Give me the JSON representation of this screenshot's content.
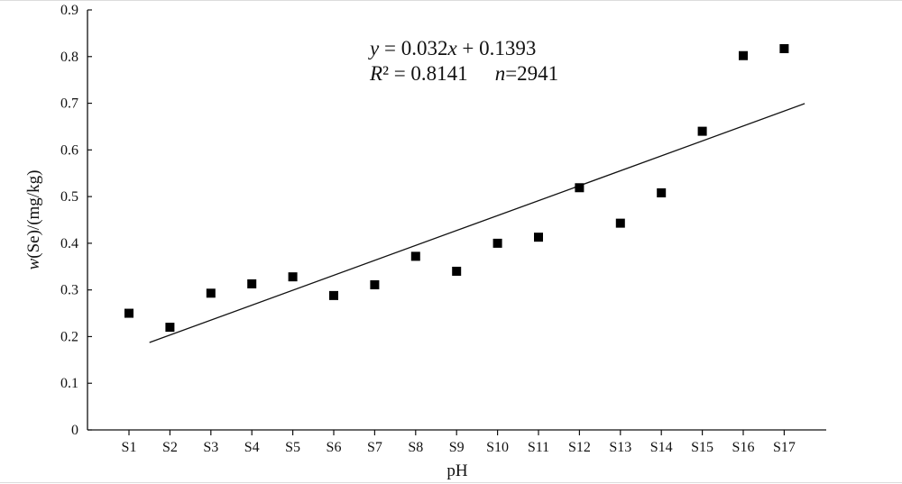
{
  "chart_data": {
    "type": "scatter",
    "xlabel": "pH",
    "ylabel": "w(Se)/(mg/kg)",
    "ylabel_parts": {
      "italic": "w",
      "rest": "(Se)/(mg/kg)"
    },
    "categories": [
      "S1",
      "S2",
      "S3",
      "S4",
      "S5",
      "S6",
      "S7",
      "S8",
      "S9",
      "S10",
      "S11",
      "S12",
      "S13",
      "S14",
      "S15",
      "S16",
      "S17"
    ],
    "values": [
      0.25,
      0.22,
      0.293,
      0.313,
      0.328,
      0.288,
      0.311,
      0.372,
      0.34,
      0.4,
      0.413,
      0.519,
      0.443,
      0.508,
      0.64,
      0.802,
      0.817
    ],
    "ylim": [
      0,
      0.9
    ],
    "yticks": [
      "0",
      "0.1",
      "0.2",
      "0.3",
      "0.4",
      "0.5",
      "0.6",
      "0.7",
      "0.8",
      "0.9"
    ],
    "grid": false,
    "marker": "square",
    "marker_color": "#000000",
    "trendline": {
      "slope": 0.032,
      "intercept": 0.1393,
      "x_range": [
        0.5,
        16.5
      ]
    },
    "annotation": {
      "equation": {
        "y": "y",
        "rest": " = 0.032",
        "x": "x",
        "tail": " + 0.1393"
      },
      "stats": {
        "r": "R",
        "r_rest": "² = 0.8141",
        "n": "n",
        "n_rest": "=2941"
      }
    }
  }
}
